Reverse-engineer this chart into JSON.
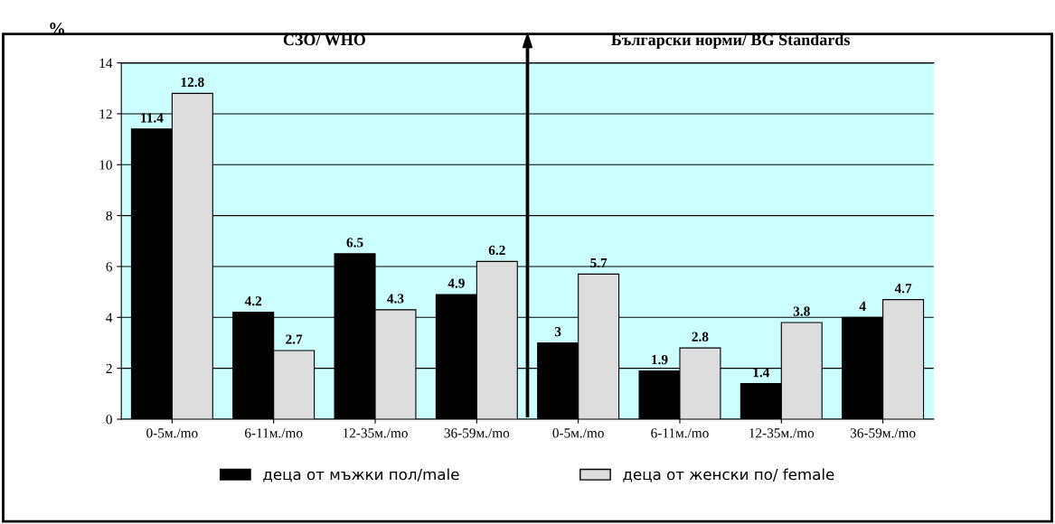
{
  "chart_data": {
    "type": "bar",
    "ylabel": "%",
    "annotations": [
      "СЗО/ WHO",
      "Български норми/ BG Standards"
    ],
    "categories": [
      "0-5м./mo",
      "6-11м./mo",
      "12-35м./mo",
      "36-59м./mo",
      "0-5м./mo",
      "6-11м./mo",
      "12-35м./mo",
      "36-59м./mo"
    ],
    "series": [
      {
        "name": "деца от мъжки пол/male",
        "color": "#000000",
        "values": [
          11.4,
          4.2,
          6.5,
          4.9,
          3,
          1.9,
          1.4,
          4
        ]
      },
      {
        "name": "деца от женски по/ female",
        "color": "#dddddd",
        "values": [
          12.8,
          2.7,
          4.3,
          6.2,
          5.7,
          2.8,
          3.8,
          4.7
        ]
      }
    ],
    "ylim": [
      0,
      14
    ],
    "yticks": [
      0,
      2,
      4,
      6,
      8,
      10,
      12,
      14
    ],
    "grid": "y",
    "legend": "bottom",
    "data_labels": true
  }
}
